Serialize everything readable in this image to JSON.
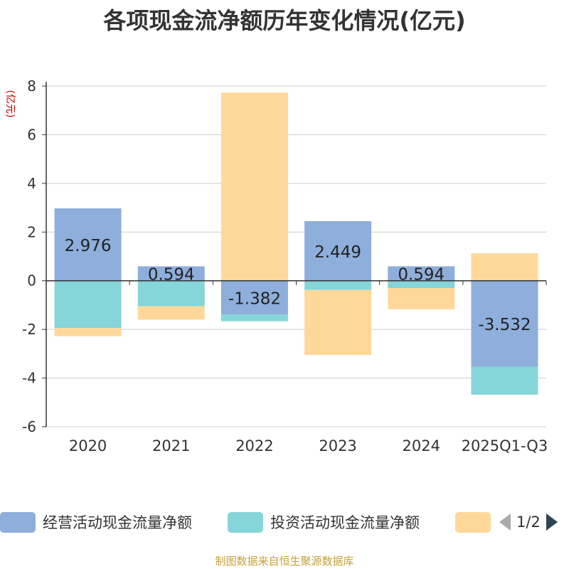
{
  "chart_data": {
    "type": "bar",
    "stacked": true,
    "title": "各项现金流净额历年变化情况(亿元)",
    "ylabel": "(亿元)",
    "xlabel": "",
    "ylim": [
      -6,
      8
    ],
    "yticks": [
      8,
      6,
      4,
      2,
      0,
      -2,
      -4,
      -6
    ],
    "grid": true,
    "categories": [
      "2020",
      "2021",
      "2022",
      "2023",
      "2024",
      "2025Q1-Q3"
    ],
    "series": [
      {
        "name": "经营活动现金流量净额",
        "color": "#8eaedb",
        "values": [
          2.976,
          0.594,
          -1.382,
          2.449,
          0.594,
          -3.532
        ],
        "labels": [
          "2.976",
          "0.594",
          "-1.382",
          "2.449",
          "0.594",
          "-3.532"
        ]
      },
      {
        "name": "投资活动现金流量净额",
        "color": "#86d5d8",
        "values": [
          -1.94,
          -1.05,
          -0.28,
          -0.38,
          -0.3,
          -1.15
        ]
      },
      {
        "name": "",
        "color": "#ffd899",
        "values": [
          -0.34,
          -0.55,
          7.73,
          -2.67,
          -0.87,
          1.13
        ]
      }
    ],
    "legend": {
      "position": "bottom",
      "page": "1/2"
    }
  },
  "source": "制图数据来自恒生聚源数据库",
  "colors": {
    "axis": "#333333",
    "grid": "#cccccc",
    "ylabel": "#cc0000",
    "pager_active": "#2f4554",
    "pager_inactive": "#aaaaaa"
  }
}
